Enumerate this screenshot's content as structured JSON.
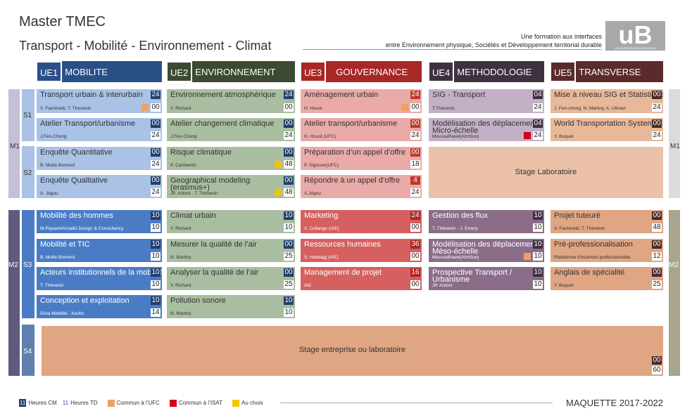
{
  "title": "Master TMEC",
  "subtitle": "Transport - Mobilité - Environnement - Climat",
  "tagline_1": "Une formation aux interfaces",
  "tagline_2": "entre Environnement physique, Sociétés et Développement territorial durable",
  "logo_text": "uB",
  "logo_caption": "UNIVERSITÉ DE BOURGOGNE",
  "ue": [
    {
      "num": "UE1",
      "name": "MOBILITE",
      "color": "#2b4f87"
    },
    {
      "num": "UE2",
      "name": "ENVIRONNEMENT",
      "color": "#3b4a30"
    },
    {
      "num": "UE3",
      "name": "GOUVERNANCE",
      "color": "#a72826"
    },
    {
      "num": "UE4",
      "name": "METHODOLOGIE",
      "color": "#3f3140"
    },
    {
      "num": "UE5",
      "name": "TRANSVERSE",
      "color": "#5a2b2b"
    }
  ],
  "levels": {
    "m1": "M1",
    "m2": "M2",
    "s1": "S1",
    "s2": "S2",
    "s3": "S3",
    "s4": "S4"
  },
  "courses": [
    {
      "title": "Transport urbain & interurbain",
      "sub": "V. Fachinetti, T. Thevenin",
      "cm": "24",
      "td": "00",
      "mark": "ufc"
    },
    {
      "title": "Atelier Transport/urbanisme",
      "sub": "J.Fen-Chong",
      "cm": "00",
      "td": "24"
    },
    {
      "title": "Enquête Quantitative",
      "sub": "B. Motte Bomwol",
      "cm": "00",
      "td": "24"
    },
    {
      "title": "Enquête Qualitative",
      "sub": "A. Jégou",
      "cm": "00",
      "td": "24"
    },
    {
      "title": "Environnement atmosphérique",
      "sub": "Y. Richard",
      "cm": "24",
      "td": "00"
    },
    {
      "title": "Atelier changement climatique",
      "sub": "J.Fen-Chong",
      "cm": "00",
      "td": "24"
    },
    {
      "title": "Risque climatique",
      "sub": "P. Camberlin",
      "cm": "00",
      "td": "48",
      "mark": "choice"
    },
    {
      "title": "Geographical modeling (erasmus+)",
      "sub": "JP. Antoni - T. Thévenin",
      "cm": "00",
      "td": "48",
      "mark": "choice"
    },
    {
      "title": "Aménagement urbain",
      "sub": "H. Houot",
      "cm": "24",
      "td": "00",
      "mark": "ufc"
    },
    {
      "title": "Atelier transport/urbanisme",
      "sub": "H. Houot (UFC)",
      "cm": "00",
      "td": "24"
    },
    {
      "title": "Préparation d’un appel d’offre",
      "sub": "P. Signoret(UFC)",
      "cm": "00",
      "td": "18"
    },
    {
      "title": "Répondre à un appel d’offre",
      "sub": "A.Jégou",
      "cm": "4",
      "td": "24"
    },
    {
      "title": "SIG - Transport",
      "sub": "T.Thévenin",
      "cm": "04",
      "td": "24"
    },
    {
      "title": "Modélisation des déplacements Micro-échelle",
      "sub": "MoussaRavel(AlmSun)",
      "cm": "04",
      "td": "24",
      "mark": "isat"
    },
    {
      "title": "Mise à niveau SIG et Statistique",
      "sub": "J. Fen-chong, N. Martiny, A. Ullman",
      "cm": "00",
      "td": "24"
    },
    {
      "title": "World Transportation System",
      "sub": "Y. Boquet",
      "cm": "00",
      "td": "24"
    },
    {
      "title": "Stage Laboratoire"
    },
    {
      "title": "Mobilité des hommes",
      "sub": "M.Piquant/Arcadis Design & Consultancy",
      "cm": "10",
      "td": "10"
    },
    {
      "title": "Mobilité et TIC",
      "sub": "B. Motte Bomwol",
      "cm": "10",
      "td": "10"
    },
    {
      "title": "Acteurs institutionnels de la mobilité",
      "sub": "T. Thévenin",
      "cm": "10",
      "td": "10"
    },
    {
      "title": "Conception et exploitation",
      "sub": "Divia Mobilité - Keolis",
      "cm": "10",
      "td": "14"
    },
    {
      "title": "Climat urbain",
      "sub": "Y. Richard",
      "cm": "10",
      "td": "10"
    },
    {
      "title": "Mesurer la qualité de l’air",
      "sub": "N. Martiny",
      "cm": "00",
      "td": "25"
    },
    {
      "title": "Analyser la qualité de l’air",
      "sub": "Y. Richard",
      "cm": "00",
      "td": "25"
    },
    {
      "title": "Pollution sonore",
      "sub": "N. Martiny",
      "cm": "10",
      "td": "10"
    },
    {
      "title": "Marketing",
      "sub": "V. Collange (IAE)",
      "cm": "24",
      "td": "00"
    },
    {
      "title": "Ressources humaines",
      "sub": "S. Haddagj (IAE)",
      "cm": "36",
      "td": "00"
    },
    {
      "title": "Management de projet",
      "sub": "IAE",
      "cm": "16",
      "td": "00"
    },
    {
      "title": "Gestion des flux",
      "sub": "T. Thévenin - J. Emery",
      "cm": "10",
      "td": "10"
    },
    {
      "title": "Modélisation des déplacements Méso-échelle",
      "sub": "MoussaRavel(AlmSun)",
      "cm": "10",
      "td": "10",
      "mark": "ufc"
    },
    {
      "title": "Prospective Transport / Urbanisme",
      "sub": "JP. Antoni",
      "cm": "10",
      "td": "10"
    },
    {
      "title": "Projet tuteuré",
      "sub": "V. Fachinetti, T. Thévenin",
      "cm": "00",
      "td": "48"
    },
    {
      "title": "Pré-professionalisation",
      "sub": "Plateforme d’insertion professionnelle",
      "cm": "00",
      "td": "12"
    },
    {
      "title": "Anglais de spécialité",
      "sub": "Y. Boquet",
      "cm": "00",
      "td": "25"
    },
    {
      "title": "Stage entreprise ou laboratoire",
      "cm": "00",
      "td": "60"
    }
  ],
  "legend": {
    "cm_num": "11",
    "cm_label": "Heures CM",
    "td_num": "11",
    "td_label": "Heures TD",
    "ufc": "Commun à l’UFC",
    "isat": "Commun à l’ISAT",
    "choice": "Au choix"
  },
  "footer": "MAQUETTE 2017-2022",
  "colors": {
    "ufc": "#f0a060",
    "isat": "#d0021b",
    "choice": "#f4c400"
  }
}
